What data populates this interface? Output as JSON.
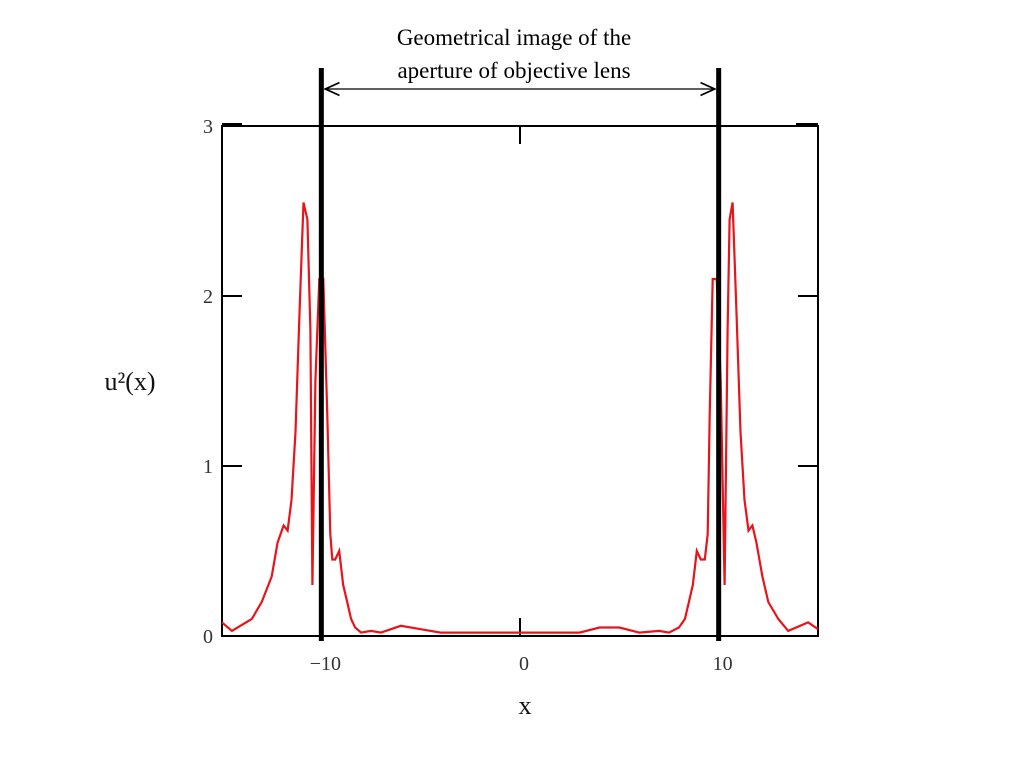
{
  "chart_data": {
    "type": "line",
    "title": "",
    "xlabel": "x",
    "ylabel": "u²(x)",
    "xlim": [
      -15,
      15
    ],
    "ylim": [
      0,
      3
    ],
    "x_ticks": [
      {
        "value": -10,
        "label": "−10"
      },
      {
        "value": 0,
        "label": "0"
      },
      {
        "value": 10,
        "label": "10"
      }
    ],
    "y_ticks": [
      {
        "value": 0,
        "label": "0"
      },
      {
        "value": 1,
        "label": "1"
      },
      {
        "value": 2,
        "label": "2"
      },
      {
        "value": 3,
        "label": "3"
      }
    ],
    "grid": false,
    "series": [
      {
        "color": "#e8141a",
        "x": [
          -15.0,
          -14.5,
          -13.5,
          -13.0,
          -12.5,
          -12.2,
          -11.9,
          -11.7,
          -11.5,
          -11.3,
          -11.1,
          -10.9,
          -10.7,
          -10.55,
          -10.45,
          -10.3,
          -10.1,
          -9.9,
          -9.7,
          -9.55,
          -9.45,
          -9.3,
          -9.1,
          -8.9,
          -8.7,
          -8.5,
          -8.3,
          -8.0,
          -7.5,
          -7.0,
          -6.0,
          -5.0,
          -4.0,
          -3.0,
          -2.0,
          0.0,
          2.0,
          3.0,
          4.0,
          5.0,
          6.0,
          7.0,
          7.5,
          8.0,
          8.3,
          8.5,
          8.7,
          8.9,
          9.1,
          9.3,
          9.45,
          9.55,
          9.7,
          9.9,
          10.1,
          10.3,
          10.45,
          10.55,
          10.7,
          10.9,
          11.1,
          11.3,
          11.5,
          11.7,
          11.9,
          12.2,
          12.5,
          13.0,
          13.5,
          14.5,
          15.0
        ],
        "y": [
          0.08,
          0.03,
          0.1,
          0.2,
          0.35,
          0.55,
          0.65,
          0.62,
          0.8,
          1.2,
          1.9,
          2.55,
          2.45,
          1.8,
          0.3,
          1.5,
          2.1,
          2.1,
          1.3,
          0.6,
          0.45,
          0.45,
          0.5,
          0.3,
          0.2,
          0.1,
          0.05,
          0.02,
          0.03,
          0.02,
          0.06,
          0.04,
          0.02,
          0.02,
          0.02,
          0.02,
          0.02,
          0.02,
          0.05,
          0.05,
          0.02,
          0.03,
          0.02,
          0.05,
          0.1,
          0.2,
          0.3,
          0.5,
          0.45,
          0.45,
          0.6,
          1.3,
          2.1,
          2.1,
          1.5,
          0.3,
          1.8,
          2.45,
          2.55,
          1.9,
          1.2,
          0.8,
          0.62,
          0.65,
          0.55,
          0.35,
          0.2,
          0.1,
          0.03,
          0.08,
          0.04
        ]
      }
    ],
    "aperture_markers": [
      -10,
      10
    ],
    "annotation": {
      "lines": [
        "Geometrical image of the",
        "aperture of objective lens"
      ],
      "arrow_from": -10,
      "arrow_to": 10
    }
  }
}
